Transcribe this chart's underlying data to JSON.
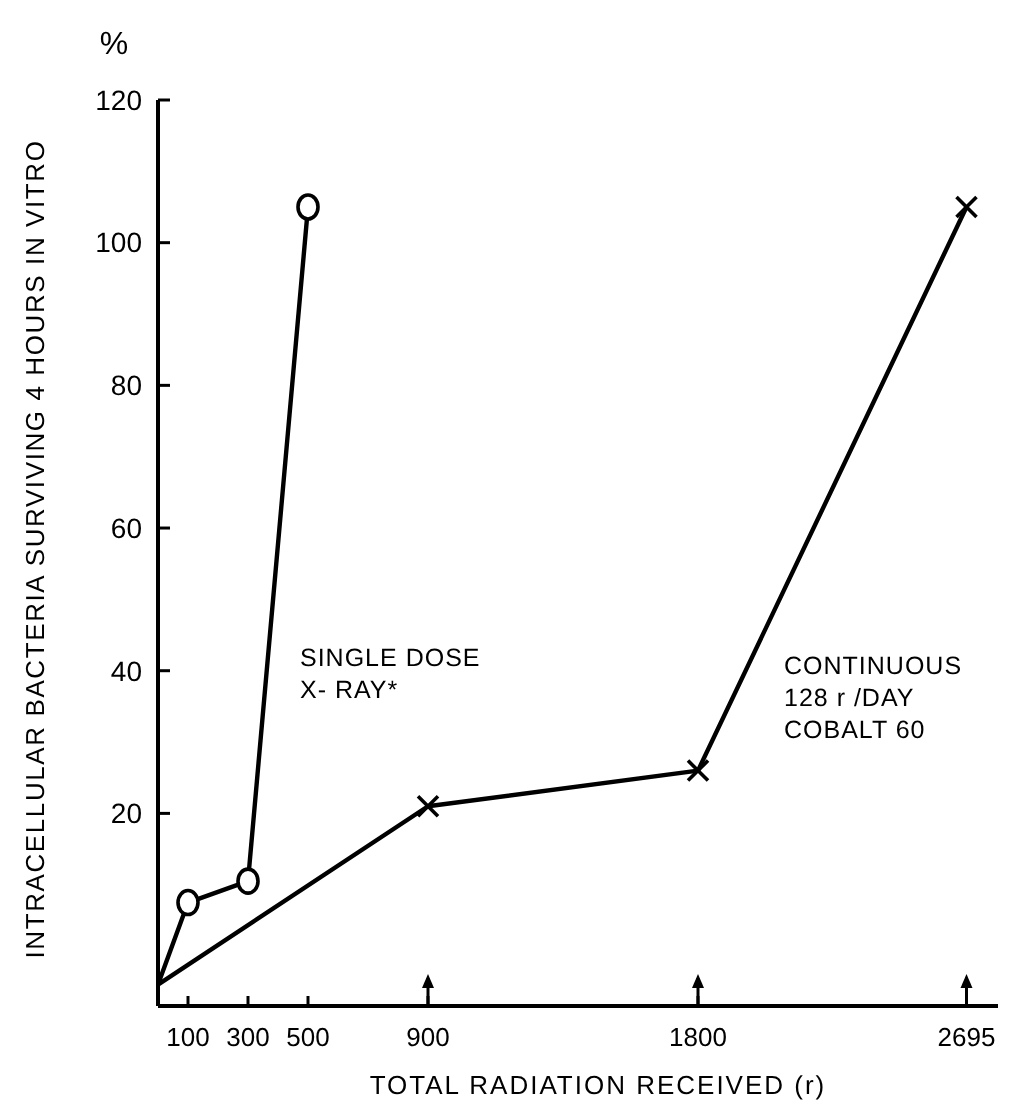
{
  "chart_data": {
    "type": "line",
    "xlabel": "TOTAL RADIATION RECEIVED (r)",
    "ylabel": "INTRACELLULAR BACTERIA SURVIVING 4 HOURS IN VITRO",
    "annotations": [
      "%"
    ],
    "xlim": [
      0,
      2800
    ],
    "xticks": [
      100,
      300,
      500,
      900,
      1800,
      2695
    ],
    "ylim": [
      -7,
      120
    ],
    "yticks": [
      20,
      40,
      60,
      80,
      100,
      120
    ],
    "grid": false,
    "line_style": "solid",
    "series": [
      {
        "name": "SINGLE DOSE\nX- RAY*",
        "color": "#000000",
        "marker": "circle",
        "x": [
          0,
          100,
          300,
          500
        ],
        "values": [
          -4,
          7.5,
          10.5,
          105
        ]
      },
      {
        "name": "CONTINUOUS\n128 r /DAY\nCOBALT 60",
        "color": "#000000",
        "marker": "cross",
        "x": [
          0,
          900,
          1800,
          2695
        ],
        "values": [
          -4,
          21,
          26,
          105
        ]
      }
    ]
  }
}
